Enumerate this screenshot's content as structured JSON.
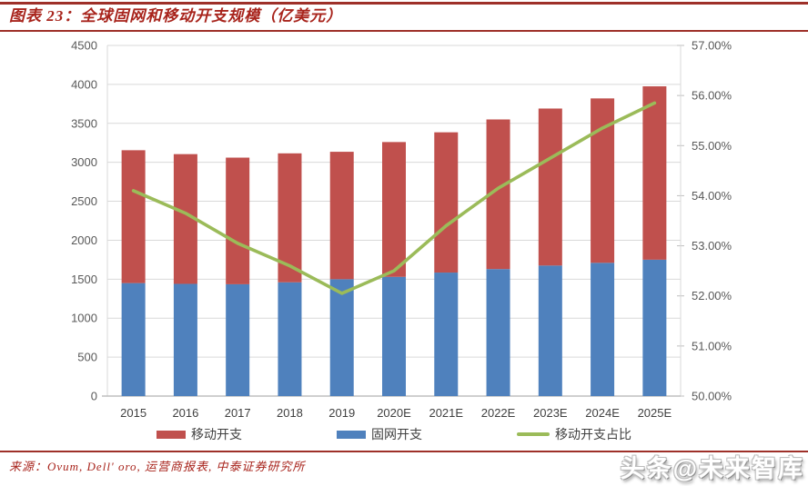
{
  "header": {
    "title": "图表 23：全球固网和移动开支规模（亿美元）",
    "accent_color": "#a8241c",
    "rule_color": "#9e3029"
  },
  "footer": {
    "source": "来源：Ovum, Dell' oro, 运营商报表, 中泰证券研究所"
  },
  "page": {
    "watermark": "头条@未来智库"
  },
  "chart_data": {
    "type": "bar",
    "subtype": "stacked-bars-with-line-on-secondary-axis",
    "title": "全球固网和移动开支规模（亿美元）",
    "categories": [
      "2015",
      "2016",
      "2017",
      "2018",
      "2019",
      "2020E",
      "2021E",
      "2022E",
      "2023E",
      "2024E",
      "2025E"
    ],
    "series": [
      {
        "name": "移动开支",
        "kind": "bar-stack-top",
        "axis": "left",
        "color": "#C0504D",
        "values": [
          1705,
          1665,
          1625,
          1655,
          1635,
          1730,
          1800,
          1920,
          2015,
          2110,
          2225
        ]
      },
      {
        "name": "固网开支",
        "kind": "bar-stack-bottom",
        "axis": "left",
        "color": "#4F81BD",
        "values": [
          1450,
          1440,
          1435,
          1460,
          1500,
          1530,
          1585,
          1630,
          1675,
          1710,
          1750
        ]
      },
      {
        "name": "移动开支占比",
        "kind": "line",
        "axis": "right",
        "color": "#9BBB59",
        "values_percent": [
          54.1,
          53.65,
          53.05,
          52.6,
          52.05,
          52.5,
          53.4,
          54.15,
          54.75,
          55.35,
          55.85
        ]
      }
    ],
    "stacked_totals": [
      3155,
      3105,
      3060,
      3115,
      3135,
      3260,
      3385,
      3550,
      3690,
      3820,
      3975
    ],
    "left_axis": {
      "min": 0,
      "max": 4500,
      "step": 500,
      "tick_labels": [
        "0",
        "500",
        "1000",
        "1500",
        "2000",
        "2500",
        "3000",
        "3500",
        "4000",
        "4500"
      ]
    },
    "right_axis": {
      "min": 50,
      "max": 57,
      "step": 1,
      "format": "percent",
      "tick_labels": [
        "50.00%",
        "51.00%",
        "52.00%",
        "53.00%",
        "54.00%",
        "55.00%",
        "56.00%",
        "57.00%"
      ]
    },
    "legend_position": "bottom",
    "grid": "horizontal",
    "grid_color": "#d9d9d9",
    "axis_line_color": "#bfbfbf"
  }
}
